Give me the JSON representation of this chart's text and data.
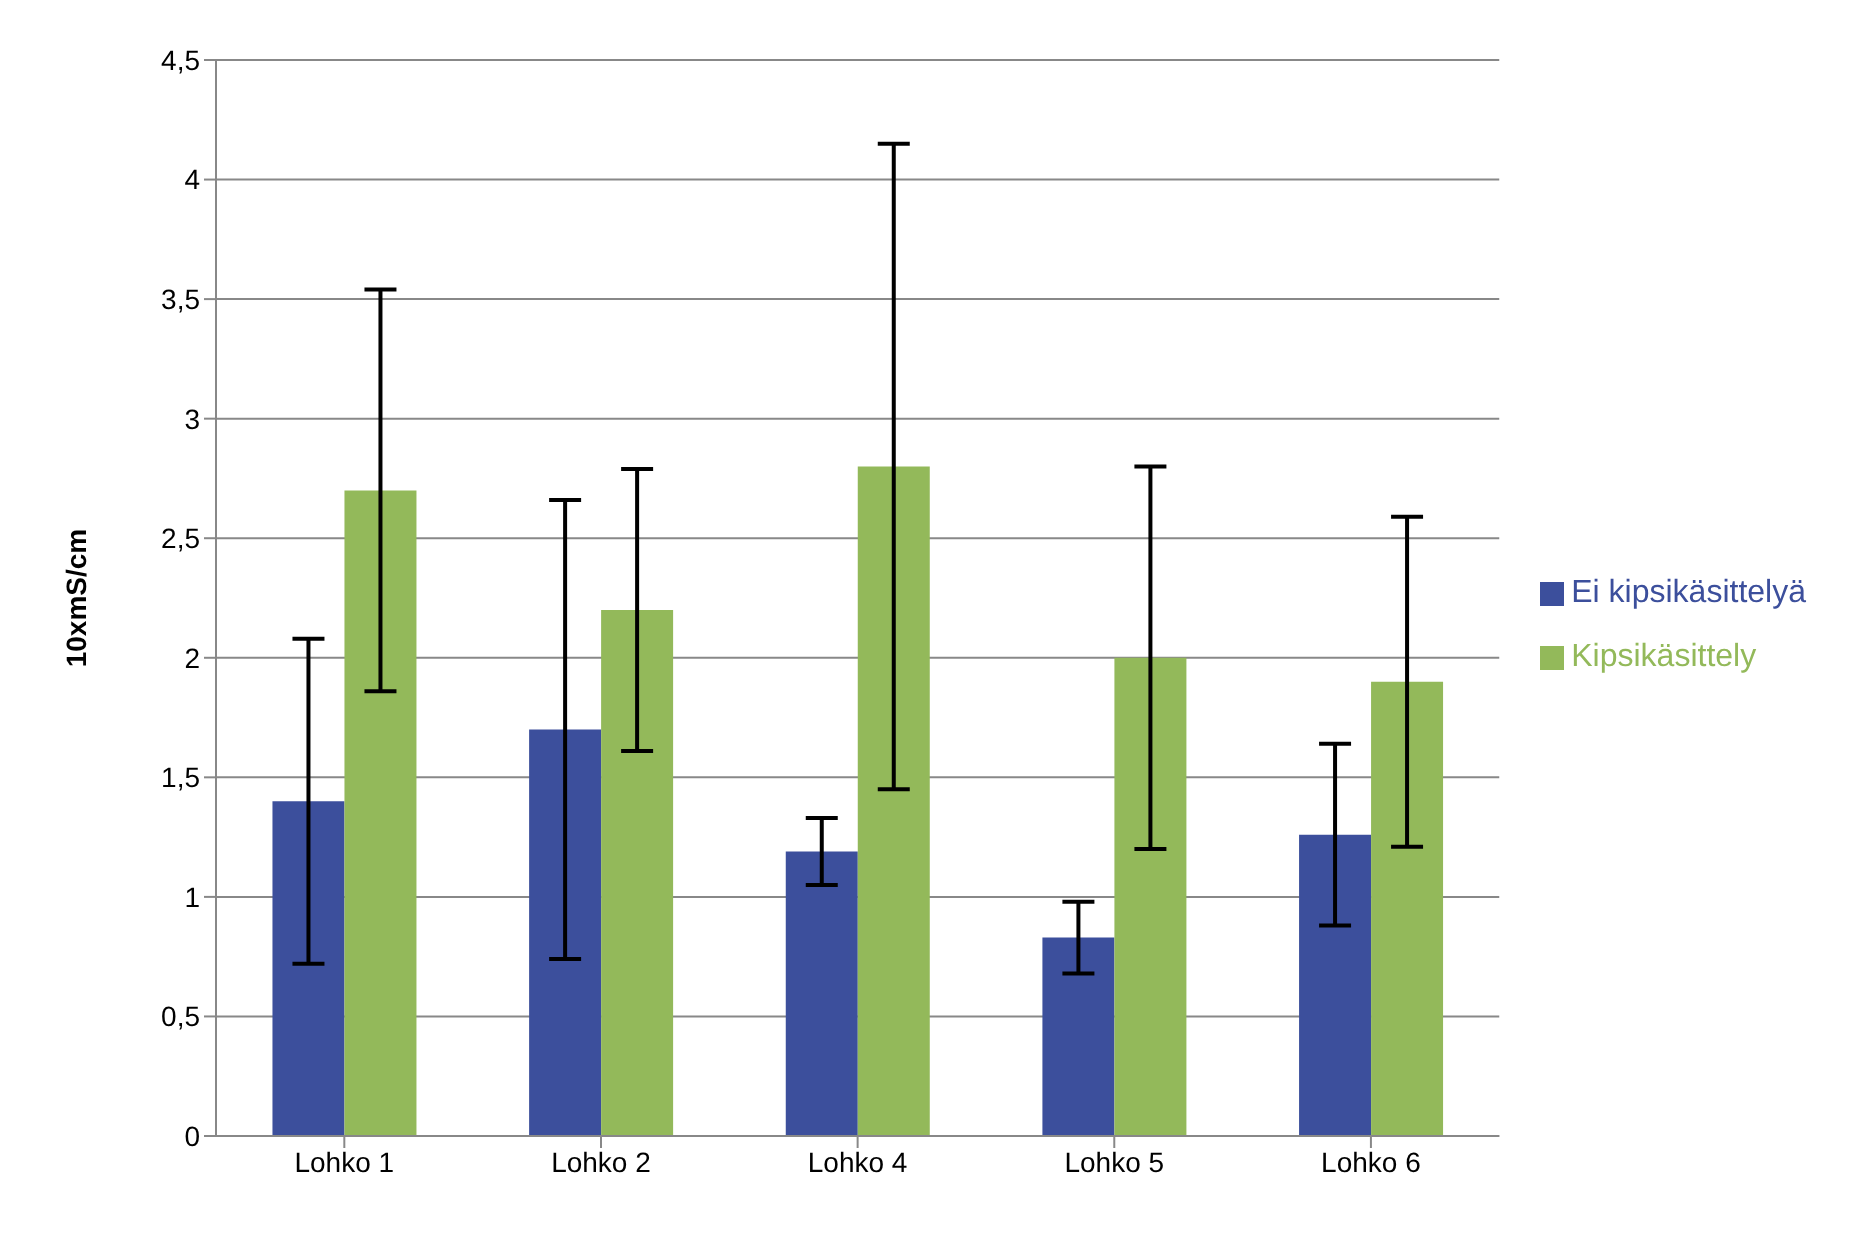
{
  "chart_data": {
    "type": "bar",
    "ylabel": "10xmS/cm",
    "categories": [
      "Lohko 1",
      "Lohko 2",
      "Lohko 4",
      "Lohko 5",
      "Lohko 6"
    ],
    "series": [
      {
        "name": "Ei kipsikäsittelyä",
        "color": "#3c4f9c",
        "values": [
          1.4,
          1.7,
          1.19,
          0.83,
          1.26
        ],
        "errors": [
          0.68,
          0.96,
          0.14,
          0.15,
          0.38
        ]
      },
      {
        "name": "Kipsikäsittely",
        "color": "#93b95a",
        "values": [
          2.7,
          2.2,
          2.8,
          2.0,
          1.9
        ],
        "errors": [
          0.84,
          0.59,
          1.35,
          0.8,
          0.69
        ]
      }
    ],
    "ylim": [
      0,
      4.5
    ],
    "yticks": [
      {
        "value": 0,
        "label": "0"
      },
      {
        "value": 0.5,
        "label": "0,5"
      },
      {
        "value": 1,
        "label": "1"
      },
      {
        "value": 1.5,
        "label": "1,5"
      },
      {
        "value": 2,
        "label": "2"
      },
      {
        "value": 2.5,
        "label": "2,5"
      },
      {
        "value": 3,
        "label": "3"
      },
      {
        "value": 3.5,
        "label": "3,5"
      },
      {
        "value": 4,
        "label": "4"
      },
      {
        "value": 4.5,
        "label": "4,5"
      }
    ],
    "grid": "y",
    "legend": "right"
  }
}
